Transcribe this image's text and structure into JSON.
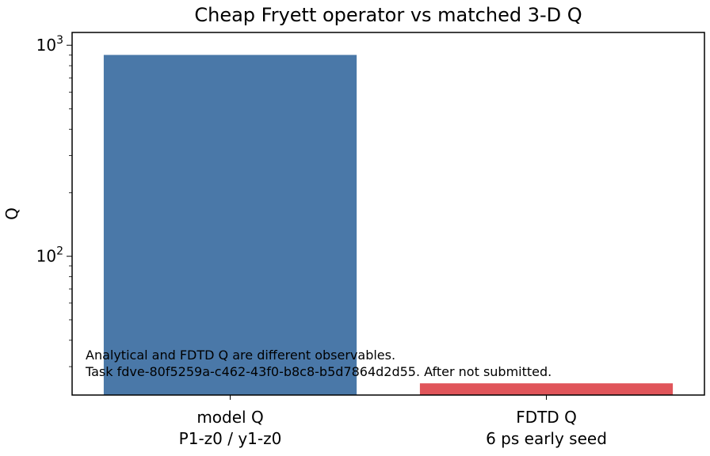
{
  "chart_data": {
    "type": "bar",
    "title": "Cheap Fryett operator vs matched 3-D Q",
    "xlabel": "",
    "ylabel": "Q",
    "yscale": "log",
    "ylim": [
      22,
      1150
    ],
    "yticks": [
      {
        "value": 100,
        "base": "10",
        "exp": "2"
      },
      {
        "value": 1000,
        "base": "10",
        "exp": "3"
      }
    ],
    "categories": [
      {
        "line1": "model Q",
        "line2": "P1-z0 / y1-z0"
      },
      {
        "line1": "FDTD Q",
        "line2": "6 ps early seed"
      }
    ],
    "values": [
      900,
      25
    ],
    "colors": [
      "#4a78a8",
      "#e0555a"
    ],
    "annotation": [
      "Analytical and FDTD Q are different observables.",
      "Task fdve-80f5259a-c462-43f0-b8c8-b5d7864d2d55. After not submitted."
    ],
    "grid": false,
    "legend": "none"
  }
}
